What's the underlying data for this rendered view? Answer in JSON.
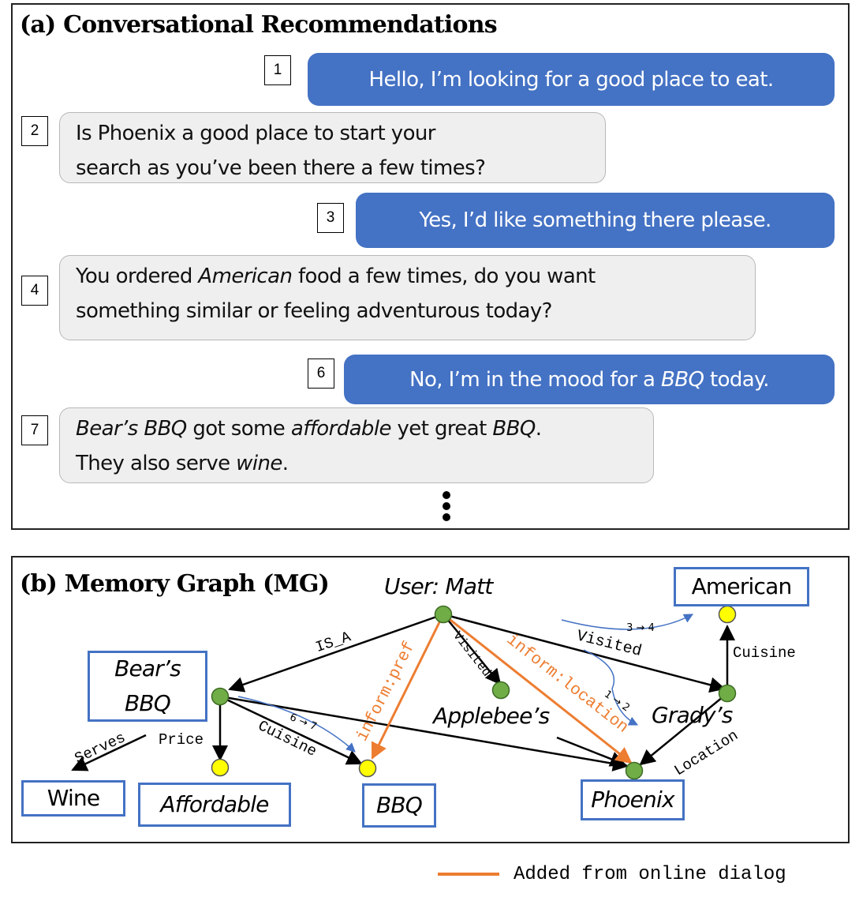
{
  "panel_a": {
    "title": "(a) Conversational Recommendations",
    "turns": [
      {
        "num": "1",
        "speaker": "user",
        "parts": [
          {
            "t": "Hello, I’m looking for a good place to eat."
          }
        ]
      },
      {
        "num": "2",
        "speaker": "bot",
        "lines": [
          [
            {
              "t": "Is Phoenix a good place to start your"
            }
          ],
          [
            {
              "t": "search as you’ve been there a few times?"
            }
          ]
        ]
      },
      {
        "num": "3",
        "speaker": "user",
        "parts": [
          {
            "t": "Yes, I’d like something there please."
          }
        ]
      },
      {
        "num": "4",
        "speaker": "bot",
        "lines": [
          [
            {
              "t": "You ordered "
            },
            {
              "t": "American",
              "i": true
            },
            {
              "t": " food a few times, do you want"
            }
          ],
          [
            {
              "t": "something similar or feeling adventurous today?"
            }
          ]
        ]
      },
      {
        "num": "6",
        "speaker": "user",
        "parts": [
          {
            "t": "No, I’m in the mood for a "
          },
          {
            "t": "BBQ",
            "i": true
          },
          {
            "t": " today."
          }
        ]
      },
      {
        "num": "7",
        "speaker": "bot",
        "lines": [
          [
            {
              "t": "Bear’s BBQ",
              "i": true
            },
            {
              "t": " got some "
            },
            {
              "t": "affordable",
              "i": true
            },
            {
              "t": " yet great "
            },
            {
              "t": "BBQ",
              "i": true
            },
            {
              "t": "."
            }
          ],
          [
            {
              "t": "They also serve "
            },
            {
              "t": "wine",
              "i": true
            },
            {
              "t": "."
            }
          ]
        ]
      }
    ]
  },
  "panel_b": {
    "title": "(b) Memory Graph (MG)",
    "nodes": {
      "user": "User: Matt",
      "american": "American",
      "bears_bbq": [
        "Bear’s",
        "BBQ"
      ],
      "applebees": "Applebee’s",
      "gradys": "Grady’s",
      "wine": "Wine",
      "affordable": "Affordable",
      "bbq": "BBQ",
      "phoenix": "Phoenix"
    },
    "edges": {
      "is_a": "IS_A",
      "visited_applebees": "Visited",
      "visited_gradys": "Visited",
      "cuisine_gradys": "Cuisine",
      "cuisine_bears": "Cuisine",
      "serves": "Serves",
      "price": "Price",
      "location": "Location",
      "inform_pref": "inform:pref",
      "inform_location": "inform:location"
    },
    "turn_refs": {
      "r34": "3 → 4",
      "r12": "1 → 2",
      "r67": "6 → 7"
    },
    "colors": {
      "entity_border": "#4472c4",
      "node_green": "#70ad47",
      "node_yellow": "#ffff00",
      "added_edge": "#ed7d31",
      "turn_arrow": "#4472c4"
    }
  },
  "legend": {
    "label": "Added from online dialog"
  }
}
